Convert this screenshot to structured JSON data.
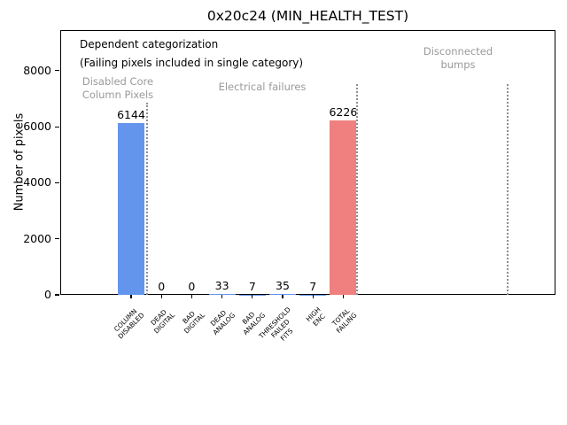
{
  "chart_data": {
    "type": "bar",
    "title": "0x20c24 (MIN_HEALTH_TEST)",
    "ylabel": "Number of pixels",
    "ylim": [
      0,
      9450
    ],
    "yticks": [
      0,
      2000,
      4000,
      6000,
      8000
    ],
    "categories": [
      [
        "COLUMN",
        "DISABLED"
      ],
      [
        "DEAD",
        "DIGITAL"
      ],
      [
        "BAD",
        "DIGITAL"
      ],
      [
        "DEAD",
        "ANALOG"
      ],
      [
        "BAD",
        "ANALOG"
      ],
      [
        "THRESHOLD",
        "FAILED",
        "FITS"
      ],
      [
        "HIGH",
        "ENC"
      ],
      [
        "TOTAL",
        "FAILING"
      ]
    ],
    "values": [
      6144,
      0,
      0,
      33,
      7,
      35,
      7,
      6226
    ],
    "bar_colors": [
      "#6495ed",
      "#6495ed",
      "#6495ed",
      "#6495ed",
      "#6495ed",
      "#6495ed",
      "#6495ed",
      "#f08080"
    ],
    "notes": [
      "Dependent categorization",
      "(Failing pixels included in single category)"
    ],
    "group_labels": [
      {
        "lines": [
          "Disabled Core",
          "Column Pixels"
        ]
      },
      {
        "lines": [
          "Electrical failures"
        ]
      },
      {
        "lines": [
          "Disconnected",
          "bumps"
        ]
      }
    ],
    "colors": {
      "bar_default": "#6495ed",
      "bar_total": "#f08080",
      "group_text": "#9a9a9a",
      "separator": "#8f8f8f",
      "axis": "#000000",
      "background": "#ffffff"
    },
    "grid": false,
    "legend": null
  }
}
